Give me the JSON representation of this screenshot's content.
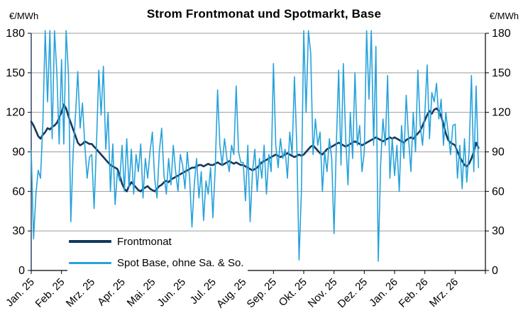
{
  "header": {
    "title": "Strom Frontmonat und Spotmarkt, Base",
    "unit_left": "€/MWh",
    "unit_right": "€/MWh"
  },
  "chart_data": {
    "type": "line",
    "title": "Strom Frontmonat und Spotmarkt, Base",
    "ylabel": "€/MWh",
    "ylim": [
      0,
      180
    ],
    "yticks": [
      0,
      30,
      60,
      90,
      120,
      150,
      180
    ],
    "grid": true,
    "legend_position": "inside-bottom-left",
    "categories": [
      "Jan. 25",
      "Feb. 25",
      "Mrz. 25",
      "Apr. 25",
      "Mai. 25",
      "Jun. 25",
      "Jul. 25",
      "Aug. 25",
      "Sep. 25",
      "Okt. 25",
      "Nov. 25",
      "Dez. 25",
      "Jan. 26",
      "Feb. 26",
      "Mrz. 26"
    ],
    "axis_months_total": 15,
    "points_per_month": 13,
    "colors": {
      "grid": "#9B9B9B",
      "axis": "#000000",
      "left_axis": "#1F3A5F",
      "text": "#000000",
      "background": "#FFFFFF"
    },
    "series": [
      {
        "name": "Frontmonat",
        "color": "#12385E",
        "width": 2.6,
        "values": [
          113,
          110,
          106,
          102,
          100,
          103,
          105,
          108,
          107,
          109,
          110,
          112,
          116,
          120,
          126,
          123,
          117,
          112,
          107,
          102,
          97,
          95,
          96,
          98,
          97,
          96,
          96,
          94,
          92,
          90,
          88,
          86,
          84,
          82,
          80,
          79,
          78,
          77,
          72,
          66,
          62,
          60,
          64,
          67,
          65,
          63,
          61,
          60,
          62,
          63,
          64,
          62,
          61,
          60,
          62,
          64,
          65,
          67,
          68,
          67,
          69,
          70,
          71,
          72,
          73,
          74,
          75,
          76,
          77,
          78,
          78,
          79,
          80,
          80,
          79,
          80,
          81,
          80,
          80,
          81,
          82,
          81,
          80,
          81,
          82,
          83,
          82,
          81,
          82,
          81,
          80,
          80,
          79,
          78,
          77,
          76,
          77,
          78,
          80,
          82,
          83,
          84,
          85,
          86,
          87,
          88,
          87,
          86,
          87,
          88,
          89,
          88,
          87,
          86,
          87,
          88,
          87,
          88,
          90,
          92,
          94,
          95,
          93,
          91,
          89,
          88,
          90,
          92,
          93,
          94,
          95,
          96,
          97,
          96,
          95,
          94,
          95,
          96,
          97,
          98,
          97,
          96,
          95,
          96,
          97,
          98,
          99,
          100,
          101,
          100,
          99,
          98,
          99,
          100,
          101,
          100,
          101,
          100,
          99,
          98,
          97,
          99,
          100,
          101,
          100,
          102,
          104,
          106,
          110,
          114,
          118,
          121,
          119,
          122,
          123,
          121,
          117,
          111,
          104,
          99,
          97,
          96,
          95,
          90,
          86,
          83,
          80,
          79,
          81,
          85,
          90,
          97,
          93
        ]
      },
      {
        "name": "Spot Base, ohne Sa. & So.",
        "color": "#27A2DB",
        "width": 1.6,
        "values": [
          91,
          24,
          58,
          76,
          70,
          112,
          182,
          128,
          182,
          100,
          182,
          150,
          96,
          160,
          96,
          182,
          148,
          37,
          90,
          118,
          151,
          108,
          127,
          95,
          70,
          86,
          88,
          47,
          95,
          152,
          118,
          155,
          92,
          120,
          60,
          96,
          50,
          75,
          68,
          95,
          60,
          100,
          63,
          92,
          58,
          88,
          75,
          96,
          55,
          85,
          70,
          90,
          105,
          70,
          55,
          90,
          108,
          72,
          58,
          85,
          65,
          95,
          75,
          60,
          88,
          80,
          62,
          90,
          70,
          33,
          65,
          85,
          55,
          75,
          38,
          68,
          58,
          78,
          40,
          78,
          137,
          95,
          80,
          100,
          85,
          75,
          95,
          88,
          140,
          90,
          82,
          82,
          53,
          95,
          37,
          75,
          92,
          60,
          85,
          70,
          95,
          58,
          88,
          75,
          157,
          95,
          78,
          100,
          85,
          92,
          70,
          105,
          88,
          147,
          95,
          8,
          60,
          182,
          120,
          182,
          165,
          88,
          115,
          95,
          105,
          60,
          90,
          75,
          100,
          85,
          28,
          95,
          152,
          80,
          157,
          100,
          65,
          120,
          85,
          150,
          95,
          110,
          75,
          90,
          182,
          130,
          182,
          95,
          170,
          7,
          80,
          115,
          95,
          148,
          70,
          100,
          72,
          95,
          60,
          110,
          85,
          133,
          100,
          75,
          120,
          90,
          152,
          110,
          95,
          120,
          156,
          100,
          135,
          128,
          142,
          115,
          130,
          95,
          120,
          105,
          88,
          110,
          111,
          70,
          95,
          62,
          100,
          67,
          90,
          148,
          75,
          140,
          78
        ]
      }
    ]
  }
}
